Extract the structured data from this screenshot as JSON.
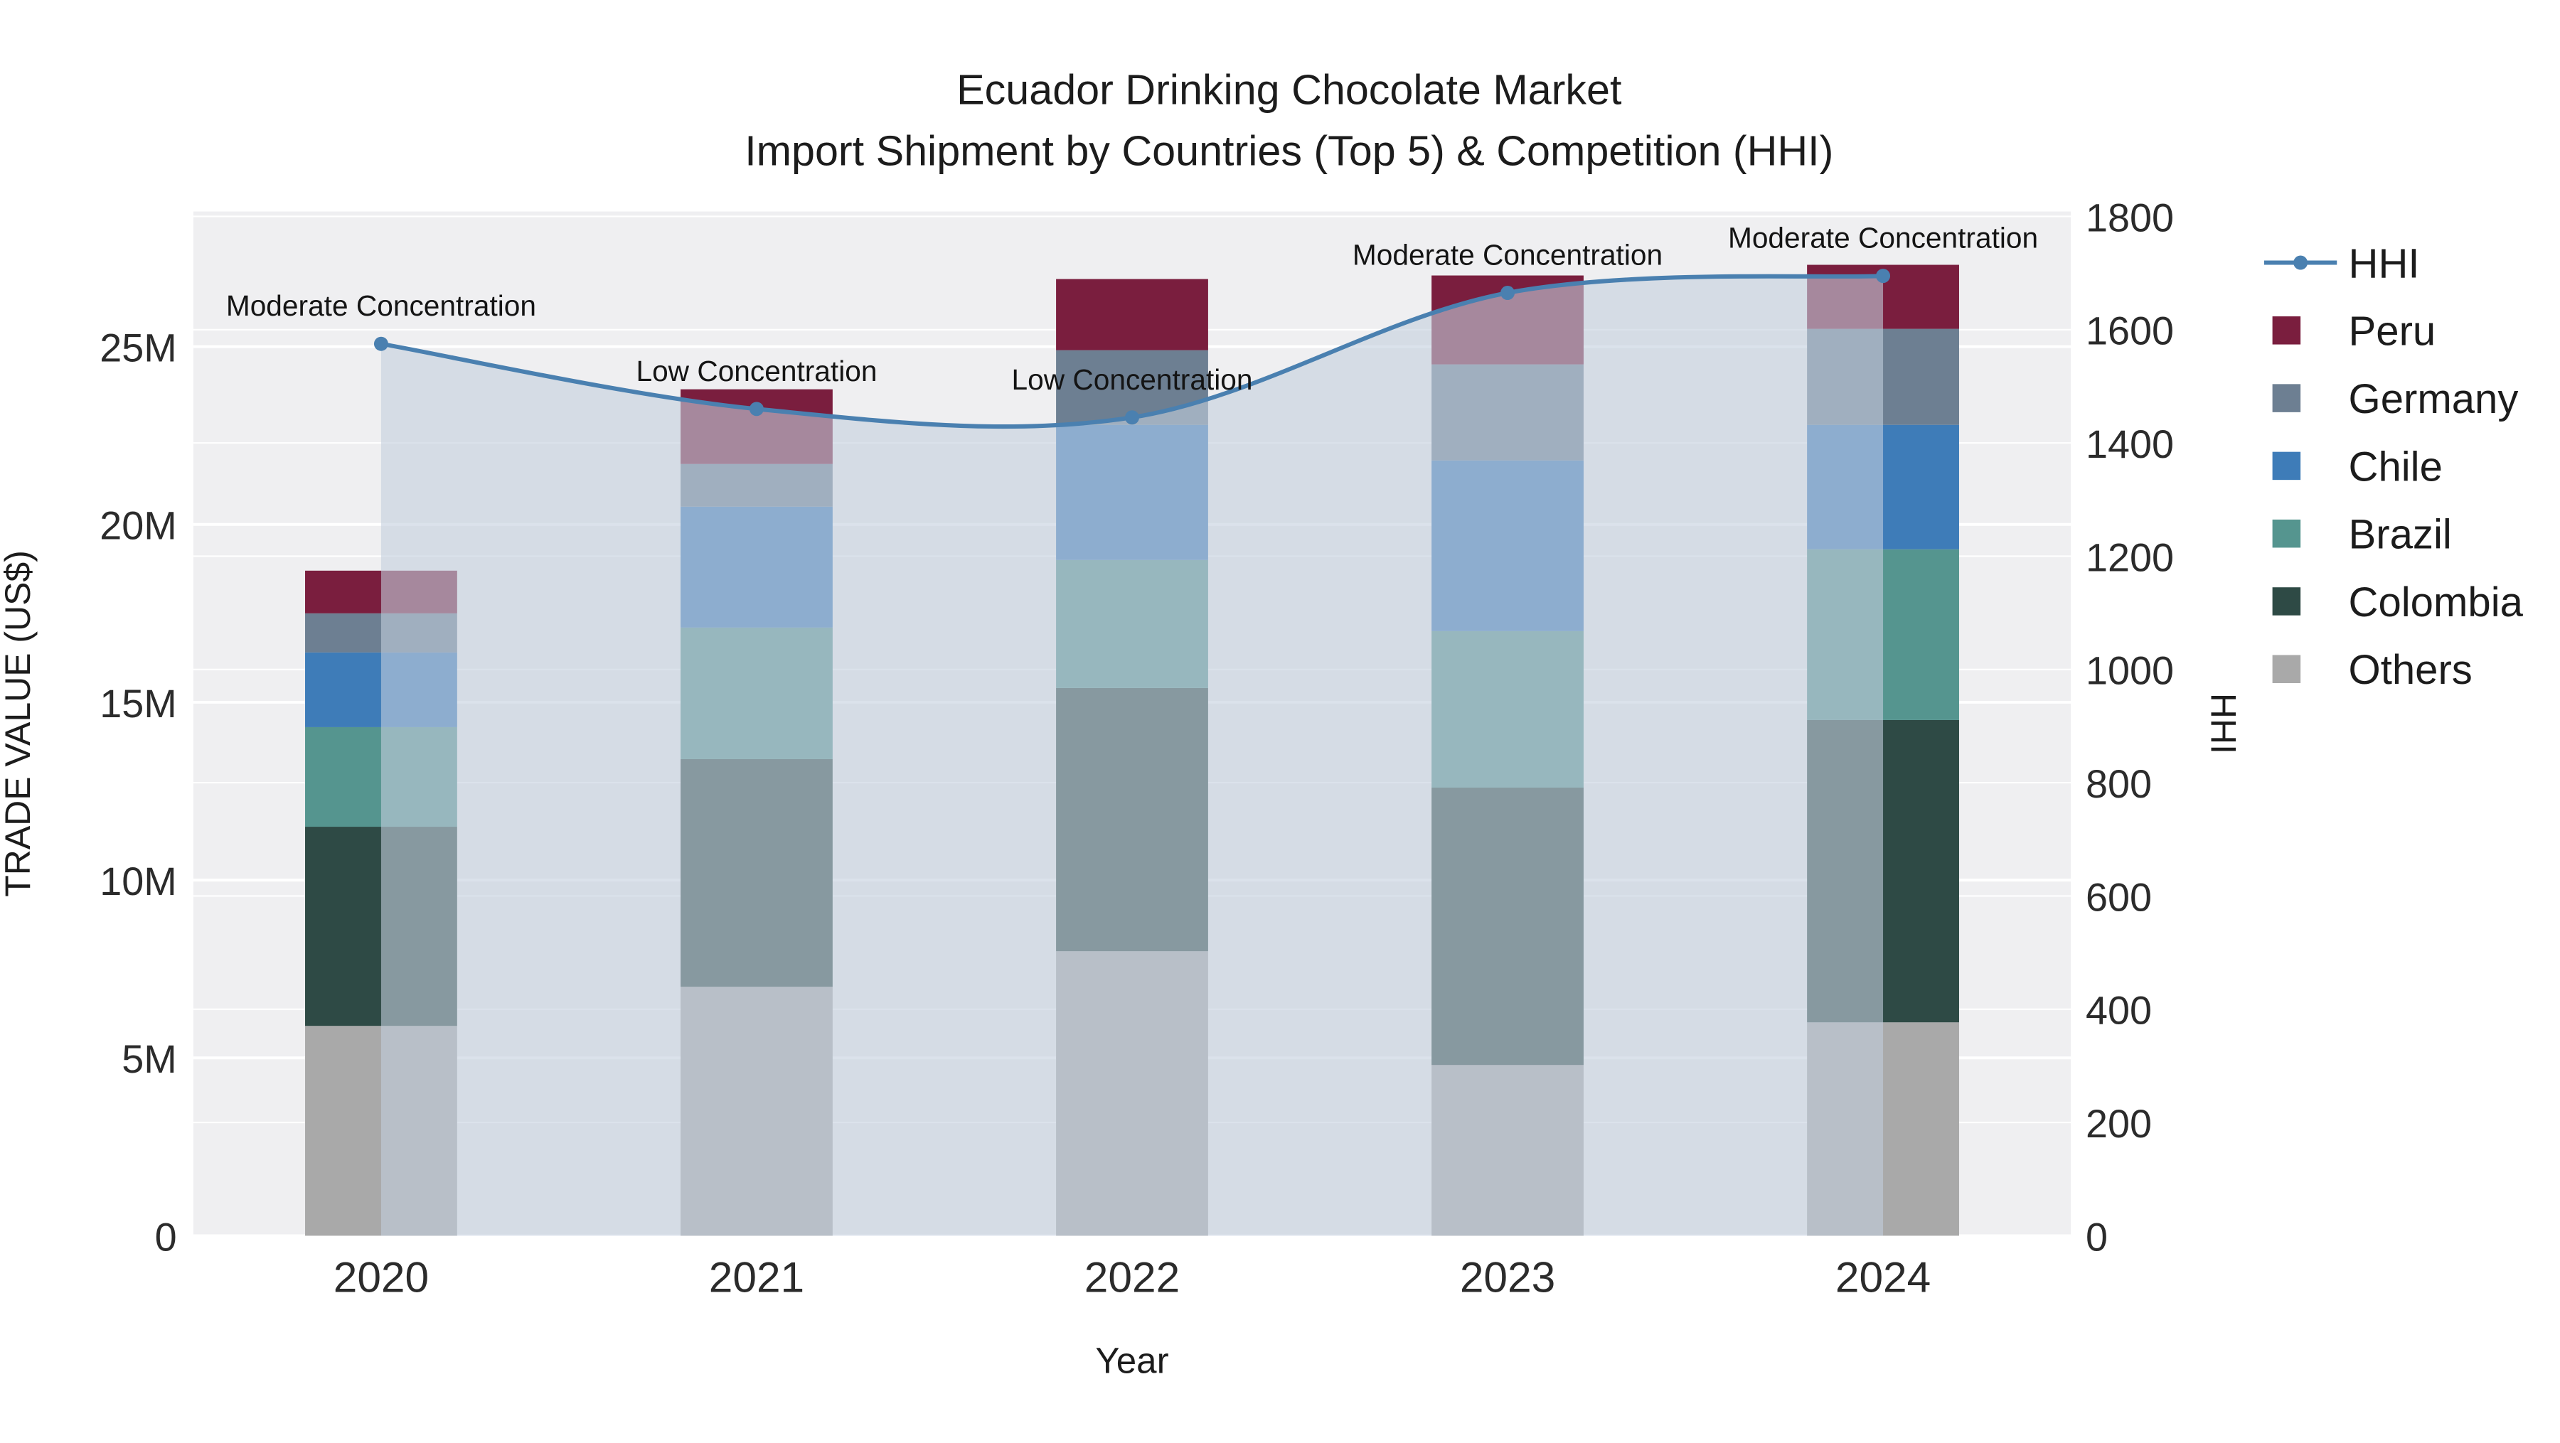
{
  "page": {
    "background_color": "#ffffff",
    "plot_background_color": "#efeff1",
    "gridline_color": "#ffffff"
  },
  "chart_data": {
    "type": "combo-stacked-bar-line",
    "title": "Ecuador Drinking Chocolate Market",
    "subtitle": "Import Shipment by Countries (Top 5) & Competition (HHI)",
    "xlabel": "Year",
    "ylabel_left": "TRADE VALUE (US$)",
    "ylabel_right": "HHI",
    "categories": [
      "2020",
      "2021",
      "2022",
      "2023",
      "2024"
    ],
    "bar_value_unit": "million US$",
    "bar_series_bottom_to_top": [
      {
        "name": "Others",
        "color": "#a9a9a9",
        "values": [
          5.9,
          7.0,
          8.0,
          4.8,
          6.0
        ]
      },
      {
        "name": "Colombia",
        "color": "#2e4a45",
        "values": [
          5.6,
          6.4,
          7.4,
          7.8,
          8.5
        ]
      },
      {
        "name": "Brazil",
        "color": "#55958f",
        "values": [
          2.8,
          3.7,
          3.6,
          4.4,
          4.8
        ]
      },
      {
        "name": "Chile",
        "color": "#3e7cb8",
        "values": [
          2.1,
          3.4,
          3.8,
          4.8,
          3.5
        ]
      },
      {
        "name": "Germany",
        "color": "#6d7f92",
        "values": [
          1.1,
          1.2,
          2.1,
          2.7,
          2.7
        ]
      },
      {
        "name": "Peru",
        "color": "#7a1e3e",
        "values": [
          1.2,
          2.1,
          2.0,
          2.5,
          1.8
        ]
      }
    ],
    "line_series": {
      "name": "HHI",
      "color": "#4a80b0",
      "fill_color": "rgba(195,206,222,0.6)",
      "values": [
        1575,
        1460,
        1445,
        1665,
        1695
      ]
    },
    "annotations": [
      "Moderate Concentration",
      "Low Concentration",
      "Low Concentration",
      "Moderate Concentration",
      "Moderate Concentration"
    ],
    "y_left": {
      "tick_labels": [
        "0",
        "5M",
        "10M",
        "15M",
        "20M",
        "25M"
      ],
      "tick_values": [
        0,
        5,
        10,
        15,
        20,
        25
      ],
      "axis_max": 28.8
    },
    "y_right": {
      "tick_labels": [
        "0",
        "200",
        "400",
        "600",
        "800",
        "1000",
        "1200",
        "1400",
        "1600",
        "1800"
      ],
      "tick_values": [
        0,
        200,
        400,
        600,
        800,
        1000,
        1200,
        1400,
        1600,
        1800
      ],
      "axis_max": 1800
    },
    "legend": {
      "items": [
        "HHI",
        "Peru",
        "Germany",
        "Chile",
        "Brazil",
        "Colombia",
        "Others"
      ]
    }
  }
}
